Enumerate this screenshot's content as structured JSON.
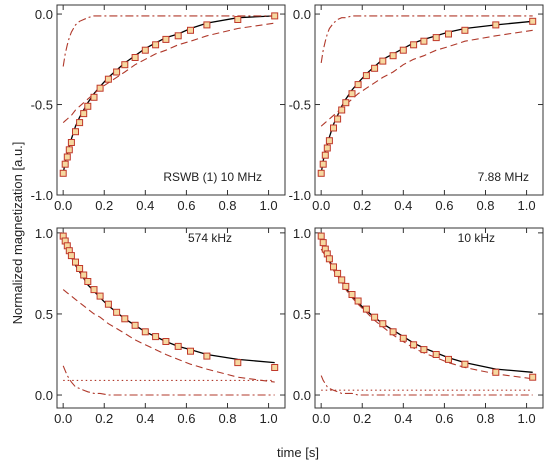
{
  "chart_data": {
    "type": "line",
    "ylabel": "Normalized magnetization [a.u.]",
    "xlabel": "time [s]",
    "colors": {
      "fit_total": "#000000",
      "fit_components": "#b0392b",
      "marker_edge": "#c0392b",
      "marker_fill": "#f6d8a0"
    },
    "panels": [
      {
        "annotation": "RSWB (1)  10 MHz",
        "xlim": [
          -0.03,
          1.08
        ],
        "ylim": [
          -1.0,
          0.05
        ],
        "xticks": [
          "0.0",
          "0.2",
          "0.4",
          "0.6",
          "0.8",
          "1.0"
        ],
        "yticks": [
          {
            "value": 0.0,
            "label": "0.0"
          },
          {
            "value": -0.5,
            "label": "-0.5"
          },
          {
            "value": -1.0,
            "label": "-1.0"
          }
        ],
        "x": [
          0.0,
          0.01,
          0.02,
          0.03,
          0.04,
          0.06,
          0.08,
          0.1,
          0.12,
          0.15,
          0.18,
          0.22,
          0.26,
          0.3,
          0.35,
          0.4,
          0.45,
          0.5,
          0.56,
          0.62,
          0.7,
          0.85,
          1.03
        ],
        "y": [
          -0.88,
          -0.83,
          -0.79,
          -0.75,
          -0.71,
          -0.65,
          -0.6,
          -0.55,
          -0.51,
          -0.46,
          -0.41,
          -0.36,
          -0.32,
          -0.28,
          -0.24,
          -0.2,
          -0.17,
          -0.14,
          -0.12,
          -0.09,
          -0.06,
          -0.03,
          -0.01
        ],
        "series": [
          {
            "style": "solid",
            "values": [
              -0.88,
              -0.82,
              -0.77,
              -0.73,
              -0.69,
              -0.62,
              -0.57,
              -0.53,
              -0.49,
              -0.44,
              -0.4,
              -0.35,
              -0.31,
              -0.27,
              -0.23,
              -0.19,
              -0.16,
              -0.13,
              -0.11,
              -0.08,
              -0.05,
              -0.02,
              -0.01
            ]
          },
          {
            "style": "dashdot",
            "values": [
              -0.29,
              -0.22,
              -0.17,
              -0.13,
              -0.1,
              -0.06,
              -0.04,
              -0.03,
              -0.02,
              -0.01,
              -0.01,
              -0.01,
              -0.01,
              -0.01,
              -0.01,
              -0.01,
              -0.01,
              -0.01,
              -0.01,
              -0.01,
              -0.01,
              -0.01,
              -0.01
            ]
          },
          {
            "style": "dashed",
            "values": [
              -0.6,
              -0.59,
              -0.58,
              -0.57,
              -0.56,
              -0.53,
              -0.51,
              -0.49,
              -0.47,
              -0.44,
              -0.41,
              -0.38,
              -0.35,
              -0.32,
              -0.28,
              -0.25,
              -0.22,
              -0.2,
              -0.17,
              -0.15,
              -0.12,
              -0.08,
              -0.05
            ]
          }
        ]
      },
      {
        "annotation": "7.88 MHz",
        "xlim": [
          -0.03,
          1.08
        ],
        "ylim": [
          -1.0,
          0.05
        ],
        "xticks": [
          "0.0",
          "0.2",
          "0.4",
          "0.6",
          "0.8",
          "1.0"
        ],
        "yticks": [
          {
            "value": 0.0,
            "label": "0.0"
          },
          {
            "value": -0.5,
            "label": "-0.5"
          },
          {
            "value": -1.0,
            "label": "-1.0"
          }
        ],
        "x": [
          0.0,
          0.01,
          0.02,
          0.03,
          0.04,
          0.06,
          0.08,
          0.1,
          0.12,
          0.15,
          0.18,
          0.22,
          0.26,
          0.3,
          0.35,
          0.4,
          0.45,
          0.5,
          0.56,
          0.62,
          0.7,
          0.85,
          1.03
        ],
        "y": [
          -0.88,
          -0.83,
          -0.78,
          -0.74,
          -0.7,
          -0.63,
          -0.58,
          -0.53,
          -0.49,
          -0.44,
          -0.39,
          -0.34,
          -0.3,
          -0.26,
          -0.23,
          -0.2,
          -0.17,
          -0.15,
          -0.13,
          -0.11,
          -0.09,
          -0.06,
          -0.04
        ],
        "series": [
          {
            "style": "solid",
            "values": [
              -0.88,
              -0.81,
              -0.76,
              -0.72,
              -0.68,
              -0.61,
              -0.56,
              -0.51,
              -0.47,
              -0.42,
              -0.38,
              -0.33,
              -0.29,
              -0.25,
              -0.22,
              -0.19,
              -0.16,
              -0.14,
              -0.12,
              -0.1,
              -0.08,
              -0.06,
              -0.04
            ]
          },
          {
            "style": "dashdot",
            "values": [
              -0.27,
              -0.2,
              -0.15,
              -0.11,
              -0.08,
              -0.05,
              -0.03,
              -0.02,
              -0.02,
              -0.01,
              -0.01,
              -0.01,
              -0.01,
              -0.01,
              -0.01,
              -0.01,
              -0.01,
              -0.01,
              -0.01,
              -0.01,
              -0.01,
              -0.01,
              -0.01
            ]
          },
          {
            "style": "dashed",
            "values": [
              -0.62,
              -0.61,
              -0.6,
              -0.59,
              -0.58,
              -0.56,
              -0.54,
              -0.52,
              -0.5,
              -0.47,
              -0.44,
              -0.41,
              -0.38,
              -0.35,
              -0.32,
              -0.28,
              -0.25,
              -0.23,
              -0.2,
              -0.18,
              -0.15,
              -0.12,
              -0.09
            ]
          }
        ]
      },
      {
        "annotation": "574 kHz",
        "xlim": [
          -0.03,
          1.08
        ],
        "ylim": [
          -0.08,
          1.03
        ],
        "xticks": [
          "0.0",
          "0.2",
          "0.4",
          "0.6",
          "0.8",
          "1.0"
        ],
        "yticks": [
          {
            "value": 1.0,
            "label": "1.0"
          },
          {
            "value": 0.5,
            "label": "0.5"
          },
          {
            "value": 0.0,
            "label": "0.0"
          }
        ],
        "x": [
          0.0,
          0.01,
          0.02,
          0.03,
          0.04,
          0.06,
          0.08,
          0.1,
          0.12,
          0.15,
          0.18,
          0.22,
          0.26,
          0.3,
          0.35,
          0.4,
          0.45,
          0.5,
          0.56,
          0.62,
          0.7,
          0.85,
          1.03
        ],
        "y": [
          0.98,
          0.95,
          0.92,
          0.89,
          0.86,
          0.82,
          0.78,
          0.74,
          0.7,
          0.65,
          0.61,
          0.56,
          0.51,
          0.47,
          0.43,
          0.39,
          0.36,
          0.33,
          0.3,
          0.27,
          0.24,
          0.2,
          0.17
        ],
        "series": [
          {
            "style": "solid",
            "values": [
              0.98,
              0.94,
              0.91,
              0.88,
              0.85,
              0.8,
              0.76,
              0.72,
              0.68,
              0.64,
              0.6,
              0.55,
              0.51,
              0.47,
              0.43,
              0.39,
              0.36,
              0.33,
              0.3,
              0.28,
              0.25,
              0.22,
              0.2
            ]
          },
          {
            "style": "dashed",
            "values": [
              0.65,
              0.64,
              0.63,
              0.62,
              0.61,
              0.59,
              0.57,
              0.55,
              0.53,
              0.5,
              0.48,
              0.44,
              0.41,
              0.38,
              0.34,
              0.31,
              0.28,
              0.25,
              0.22,
              0.19,
              0.16,
              0.11,
              0.08
            ]
          },
          {
            "style": "dotted",
            "values": [
              0.09,
              0.09,
              0.09,
              0.09,
              0.09,
              0.09,
              0.09,
              0.09,
              0.09,
              0.09,
              0.09,
              0.09,
              0.09,
              0.09,
              0.09,
              0.09,
              0.09,
              0.09,
              0.09,
              0.09,
              0.09,
              0.09,
              0.09
            ]
          },
          {
            "style": "dashdot",
            "values": [
              0.18,
              0.15,
              0.12,
              0.1,
              0.08,
              0.05,
              0.04,
              0.03,
              0.02,
              0.01,
              0.01,
              0.0,
              0.0,
              0.0,
              0.0,
              0.0,
              0.0,
              0.0,
              0.0,
              0.0,
              0.0,
              0.0,
              0.0
            ]
          }
        ]
      },
      {
        "annotation": "10 kHz",
        "xlim": [
          -0.03,
          1.08
        ],
        "ylim": [
          -0.08,
          1.03
        ],
        "xticks": [
          "0.0",
          "0.2",
          "0.4",
          "0.6",
          "0.8",
          "1.0"
        ],
        "yticks": [
          {
            "value": 1.0,
            "label": "1.0"
          },
          {
            "value": 0.5,
            "label": "0.5"
          },
          {
            "value": 0.0,
            "label": "0.0"
          }
        ],
        "x": [
          0.0,
          0.01,
          0.02,
          0.03,
          0.04,
          0.06,
          0.08,
          0.1,
          0.12,
          0.15,
          0.18,
          0.22,
          0.26,
          0.3,
          0.35,
          0.4,
          0.45,
          0.5,
          0.56,
          0.62,
          0.7,
          0.85,
          1.03
        ],
        "y": [
          0.98,
          0.94,
          0.9,
          0.87,
          0.84,
          0.79,
          0.75,
          0.71,
          0.67,
          0.62,
          0.58,
          0.53,
          0.48,
          0.44,
          0.39,
          0.35,
          0.31,
          0.28,
          0.25,
          0.22,
          0.19,
          0.14,
          0.11
        ],
        "series": [
          {
            "style": "solid",
            "values": [
              0.98,
              0.93,
              0.89,
              0.86,
              0.83,
              0.78,
              0.74,
              0.7,
              0.66,
              0.61,
              0.57,
              0.52,
              0.48,
              0.44,
              0.4,
              0.36,
              0.32,
              0.29,
              0.26,
              0.23,
              0.2,
              0.16,
              0.14
            ]
          },
          {
            "style": "dashed",
            "values": [
              0.9,
              0.88,
              0.86,
              0.84,
              0.82,
              0.77,
              0.73,
              0.69,
              0.65,
              0.6,
              0.56,
              0.51,
              0.46,
              0.42,
              0.37,
              0.33,
              0.29,
              0.26,
              0.23,
              0.2,
              0.17,
              0.13,
              0.1
            ]
          },
          {
            "style": "dotted",
            "values": [
              0.03,
              0.03,
              0.03,
              0.03,
              0.03,
              0.03,
              0.03,
              0.03,
              0.03,
              0.03,
              0.03,
              0.03,
              0.03,
              0.03,
              0.03,
              0.03,
              0.03,
              0.03,
              0.03,
              0.03,
              0.03,
              0.03,
              0.03
            ]
          },
          {
            "style": "dashdot",
            "values": [
              0.12,
              0.09,
              0.07,
              0.05,
              0.04,
              0.03,
              0.02,
              0.01,
              0.01,
              0.01,
              0.0,
              0.0,
              0.0,
              0.0,
              0.0,
              0.0,
              0.0,
              0.0,
              0.0,
              0.0,
              0.0,
              0.0,
              0.0
            ]
          }
        ]
      }
    ]
  }
}
